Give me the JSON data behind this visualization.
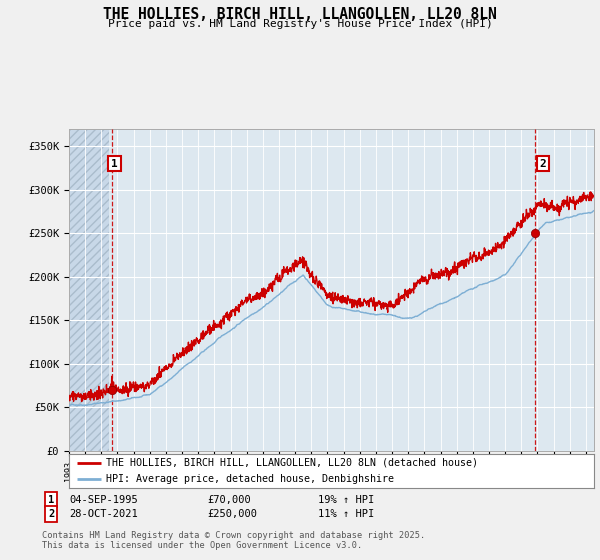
{
  "title": "THE HOLLIES, BIRCH HILL, LLANGOLLEN, LL20 8LN",
  "subtitle": "Price paid vs. HM Land Registry's House Price Index (HPI)",
  "ylim": [
    0,
    370000
  ],
  "yticks": [
    0,
    50000,
    100000,
    150000,
    200000,
    250000,
    300000,
    350000
  ],
  "ytick_labels": [
    "£0",
    "£50K",
    "£100K",
    "£150K",
    "£200K",
    "£250K",
    "£300K",
    "£350K"
  ],
  "hpi_color": "#7eafd4",
  "price_color": "#cc0000",
  "sale1_date": "04-SEP-1995",
  "sale1_price": "£70,000",
  "sale1_hpi": "19% ↑ HPI",
  "sale1_x": 1995.67,
  "sale1_y": 70000,
  "sale2_date": "28-OCT-2021",
  "sale2_price": "£250,000",
  "sale2_hpi": "11% ↑ HPI",
  "sale2_x": 2021.83,
  "sale2_y": 250000,
  "legend_label_price": "THE HOLLIES, BIRCH HILL, LLANGOLLEN, LL20 8LN (detached house)",
  "legend_label_hpi": "HPI: Average price, detached house, Denbighshire",
  "copyright": "Contains HM Land Registry data © Crown copyright and database right 2025.\nThis data is licensed under the Open Government Licence v3.0.",
  "bg_color": "#f0f0f0",
  "plot_bg_color": "#dde8f0",
  "grid_color": "#ffffff",
  "hatch_area_color": "#c8d8e8",
  "xmin": 1993,
  "xmax": 2025.5
}
